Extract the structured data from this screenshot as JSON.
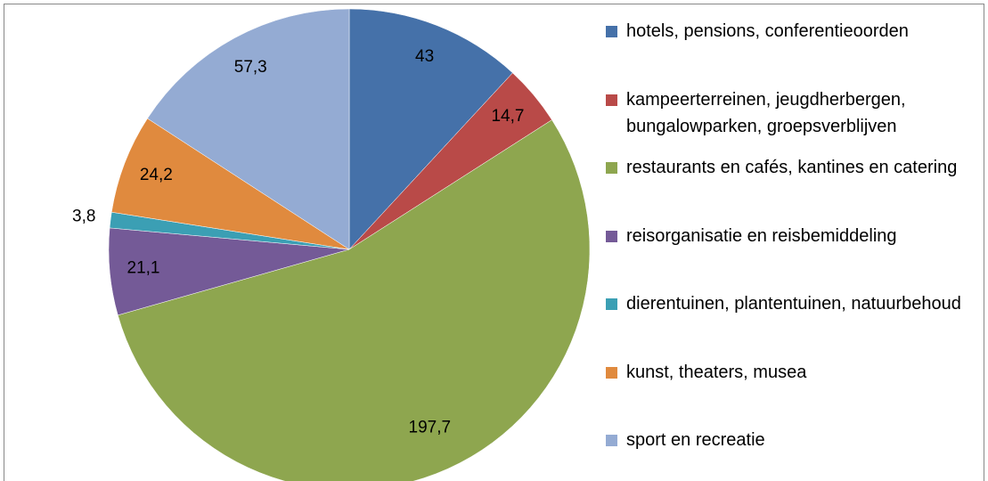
{
  "chart_data": {
    "type": "pie",
    "categories": [
      "hotels, pensions, conferentieoorden",
      "kampeerterreinen, jeugdherbergen, bungalowparken, groepsverblijven",
      "restaurants en cafés, kantines en catering",
      "reisorganisatie en reisbemiddeling",
      "dierentuinen, plantentuinen, natuurbehoud",
      "kunst, theaters, musea",
      "sport en recreatie"
    ],
    "values": [
      43,
      14.7,
      197.7,
      21.1,
      3.8,
      24.2,
      57.3
    ],
    "value_labels": [
      "43",
      "14,7",
      "197,7",
      "21,1",
      "3,8",
      "24,2",
      "57,3"
    ],
    "colors": [
      "#4571a9",
      "#b94a48",
      "#8ea64f",
      "#745a97",
      "#3b9fb4",
      "#e08a3e",
      "#94abd3"
    ],
    "legend": "right"
  }
}
